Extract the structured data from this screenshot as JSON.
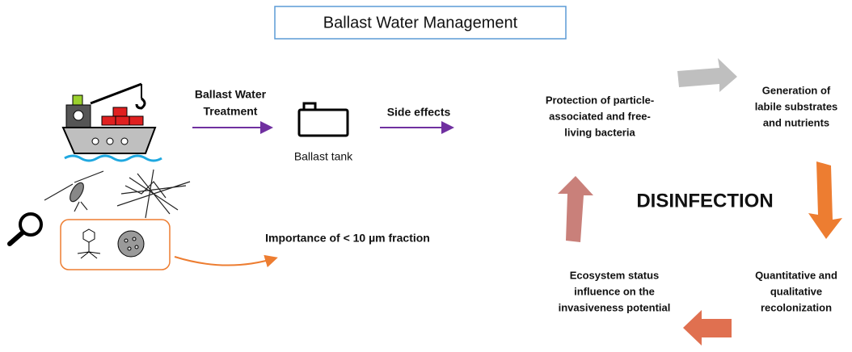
{
  "title": "Ballast Water Management",
  "treatment_label": [
    "Ballast Water",
    "Treatment"
  ],
  "tank_label": "Ballast tank",
  "side_effects_label": "Side effects",
  "fraction_label": "Importance of < 10 µm fraction",
  "cycle": {
    "center": "DISINFECTION",
    "nodes": [
      {
        "lines": [
          "Protection  of particle-",
          "associated and free-",
          "living bacteria"
        ]
      },
      {
        "lines": [
          "Generation of",
          "labile substrates",
          "and nutrients"
        ]
      },
      {
        "lines": [
          "Quantitative and",
          "qualitative",
          "recolonization"
        ]
      },
      {
        "lines": [
          "Ecosystem status",
          "influence on the",
          "invasiveness potential"
        ]
      }
    ]
  }
}
